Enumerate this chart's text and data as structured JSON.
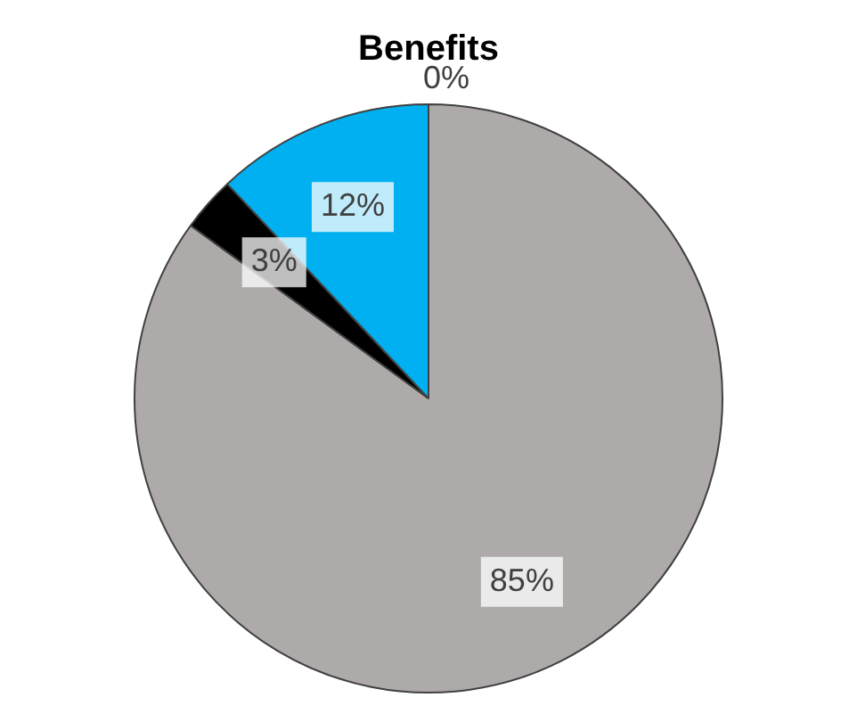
{
  "chart_data": {
    "type": "pie",
    "title": "Benefits",
    "categories": [
      null,
      null,
      null,
      null
    ],
    "values": [
      85,
      3,
      12,
      0
    ],
    "colors": [
      "#aeaaaa",
      "#000000",
      "#00b0f0",
      "#ffc000"
    ],
    "value_labels": [
      "85%",
      "3%",
      "12%",
      "0%"
    ],
    "legend": false
  }
}
